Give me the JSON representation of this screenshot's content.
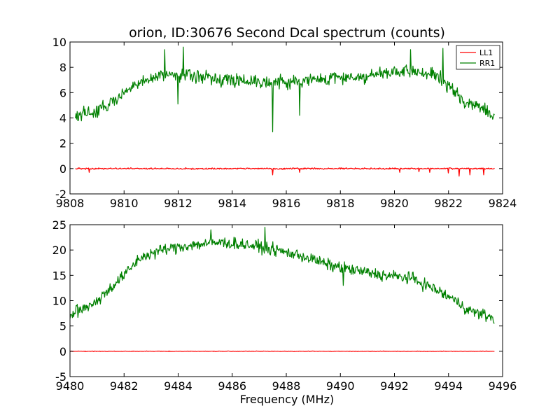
{
  "figure": {
    "title": "orion, ID:30676 Second Dcal spectrum (counts)",
    "xlabel": "Frequency (MHz)"
  },
  "chart_data": [
    {
      "type": "line",
      "title": "orion, ID:30676 Second Dcal spectrum (counts)",
      "xlabel": "",
      "ylabel": "",
      "xlim": [
        9808,
        9824
      ],
      "ylim": [
        -2,
        10
      ],
      "xticks": [
        9808,
        9810,
        9812,
        9814,
        9816,
        9818,
        9820,
        9822,
        9824
      ],
      "yticks": [
        -2,
        0,
        2,
        4,
        6,
        8,
        10
      ],
      "grid": false,
      "legend": {
        "placement": "top-right",
        "entries": [
          "LL1",
          "RR1"
        ]
      },
      "series": [
        {
          "name": "LL1",
          "color": "#ff0000",
          "x": [
            9808.2,
            9823.7
          ],
          "baseline": 0.0,
          "noise": 0.05,
          "dips": [
            [
              9808.7,
              -0.3
            ],
            [
              9815.5,
              -0.5
            ],
            [
              9816.5,
              -0.3
            ],
            [
              9820.2,
              -0.3
            ],
            [
              9820.9,
              -0.25
            ],
            [
              9821.3,
              -0.3
            ],
            [
              9822.0,
              -0.35
            ],
            [
              9822.4,
              -0.6
            ],
            [
              9822.8,
              -0.5
            ],
            [
              9823.3,
              -0.5
            ]
          ],
          "envelope": [
            [
              9808.2,
              0.0
            ],
            [
              9823.7,
              0.0
            ]
          ]
        },
        {
          "name": "RR1",
          "color": "#008000",
          "x": [
            9808.2,
            9823.7
          ],
          "noise": 0.45,
          "envelope": [
            [
              9808.2,
              4.2
            ],
            [
              9809.0,
              4.5
            ],
            [
              9809.8,
              5.6
            ],
            [
              9810.6,
              6.8
            ],
            [
              9811.2,
              7.3
            ],
            [
              9812.0,
              7.5
            ],
            [
              9813.0,
              7.2
            ],
            [
              9814.0,
              7.0
            ],
            [
              9815.0,
              6.9
            ],
            [
              9816.0,
              6.8
            ],
            [
              9817.0,
              7.0
            ],
            [
              9818.0,
              7.2
            ],
            [
              9819.0,
              7.3
            ],
            [
              9820.0,
              7.6
            ],
            [
              9821.0,
              7.6
            ],
            [
              9821.6,
              7.3
            ],
            [
              9822.1,
              6.3
            ],
            [
              9822.6,
              5.3
            ],
            [
              9823.0,
              5.0
            ],
            [
              9823.7,
              4.2
            ]
          ],
          "spikes": [
            [
              9811.5,
              9.4
            ],
            [
              9812.2,
              9.6
            ],
            [
              9820.6,
              9.4
            ],
            [
              9821.8,
              9.5
            ]
          ],
          "dips": [
            [
              9815.5,
              2.9
            ],
            [
              9816.5,
              4.2
            ],
            [
              9812.0,
              5.1
            ]
          ]
        }
      ]
    },
    {
      "type": "line",
      "title": "",
      "xlabel": "Frequency (MHz)",
      "ylabel": "",
      "xlim": [
        9480,
        9496
      ],
      "ylim": [
        -5,
        25
      ],
      "xticks": [
        9480,
        9482,
        9484,
        9486,
        9488,
        9490,
        9492,
        9494,
        9496
      ],
      "yticks": [
        -5,
        0,
        5,
        10,
        15,
        20,
        25
      ],
      "grid": false,
      "series": [
        {
          "name": "LL1",
          "color": "#ff0000",
          "x": [
            9480.0,
            9495.7
          ],
          "baseline": 0.0,
          "noise": 0.05,
          "envelope": [
            [
              9480.0,
              0.0
            ],
            [
              9495.7,
              0.0
            ]
          ]
        },
        {
          "name": "RR1",
          "color": "#008000",
          "x": [
            9480.0,
            9495.7
          ],
          "noise": 1.0,
          "envelope": [
            [
              9480.0,
              7.0
            ],
            [
              9481.0,
              10.0
            ],
            [
              9482.0,
              15.0
            ],
            [
              9482.6,
              18.5
            ],
            [
              9483.4,
              20.0
            ],
            [
              9484.5,
              21.0
            ],
            [
              9485.6,
              21.5
            ],
            [
              9486.6,
              21.0
            ],
            [
              9487.6,
              20.0
            ],
            [
              9488.6,
              18.8
            ],
            [
              9489.6,
              17.0
            ],
            [
              9490.5,
              16.0
            ],
            [
              9491.6,
              15.0
            ],
            [
              9492.6,
              14.5
            ],
            [
              9493.4,
              12.5
            ],
            [
              9494.1,
              10.5
            ],
            [
              9494.8,
              8.0
            ],
            [
              9495.4,
              7.0
            ],
            [
              9495.7,
              6.5
            ]
          ],
          "spikes": [
            [
              9485.2,
              24.0
            ],
            [
              9487.2,
              24.5
            ]
          ],
          "dips": [
            [
              9490.1,
              13.0
            ]
          ]
        }
      ]
    }
  ]
}
